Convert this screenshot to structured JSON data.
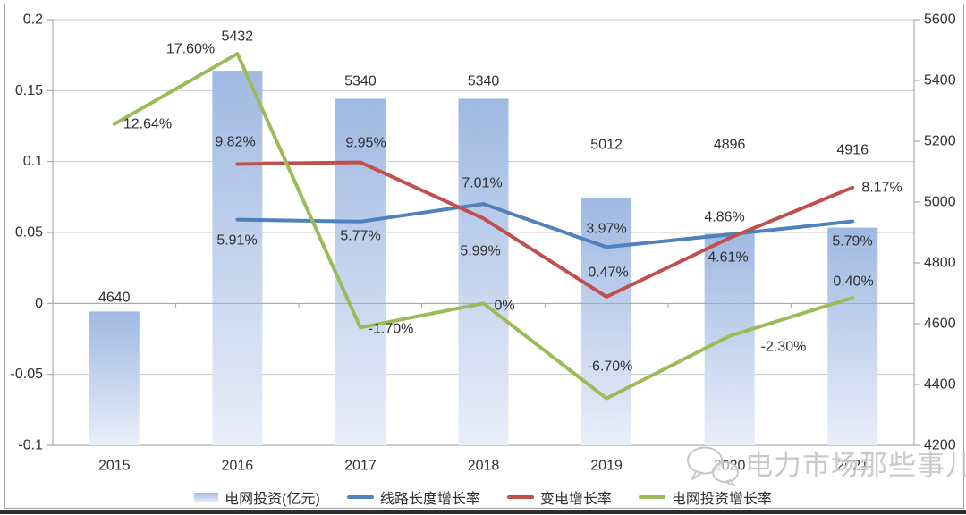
{
  "chart_data": {
    "type": "combo-bar-line",
    "categories": [
      "2015",
      "2016",
      "2017",
      "2018",
      "2019",
      "2020",
      "2021"
    ],
    "bar_series": {
      "name": "电网投资(亿元)",
      "axis": "right",
      "values": [
        4640,
        5432,
        5340,
        5340,
        5012,
        4896,
        4916
      ],
      "labels": [
        "4640",
        "5432",
        "5340",
        "5340",
        "5012",
        "4896",
        "4916"
      ],
      "color_top": "#9fb9e2",
      "color_bottom": "#e9eef9"
    },
    "line_series": [
      {
        "name": "线路长度增长率",
        "color": "#4F81BD",
        "values": [
          null,
          0.0591,
          0.0577,
          0.0701,
          0.0397,
          0.0486,
          0.0579
        ],
        "labels": [
          "",
          "5.91%",
          "5.77%",
          "7.01%",
          "3.97%",
          "4.86%",
          "5.79%"
        ]
      },
      {
        "name": "变电增长率",
        "color": "#C0504D",
        "values": [
          null,
          0.0982,
          0.0995,
          0.0599,
          0.0047,
          0.0461,
          0.0817
        ],
        "labels": [
          "",
          "9.82%",
          "9.95%",
          "5.99%",
          "0.47%",
          "4.61%",
          "8.17%"
        ]
      },
      {
        "name": "电网投资增长率",
        "color": "#9BBB59",
        "values": [
          0.1264,
          0.176,
          -0.017,
          0,
          -0.067,
          -0.023,
          0.004
        ],
        "labels": [
          "12.64%",
          "17.60%",
          "-1.70%",
          "0%",
          "-6.70%",
          "-2.30%",
          "0.40%"
        ]
      }
    ],
    "left_axis": {
      "min": -0.1,
      "max": 0.2,
      "step": 0.05,
      "ticks": [
        "0.2",
        "0.15",
        "0.1",
        "0.05",
        "0",
        "-0.05",
        "-0.1"
      ]
    },
    "right_axis": {
      "min": 4200,
      "max": 5600,
      "step": 200,
      "ticks": [
        "5600",
        "5400",
        "5200",
        "5000",
        "4800",
        "4600",
        "4400",
        "4200"
      ]
    },
    "grid": true,
    "legend_position": "bottom",
    "title": ""
  },
  "legend": {
    "items": [
      {
        "label": "电网投资(亿元)",
        "type": "bar",
        "color": "#aec6e8"
      },
      {
        "label": "线路长度增长率",
        "type": "line",
        "color": "#4F81BD"
      },
      {
        "label": "变电增长率",
        "type": "line",
        "color": "#C0504D"
      },
      {
        "label": "电网投资增长率",
        "type": "line",
        "color": "#9BBB59"
      }
    ]
  },
  "watermark": {
    "icon": "wechat-icon",
    "text": "电力市场那些事儿"
  }
}
